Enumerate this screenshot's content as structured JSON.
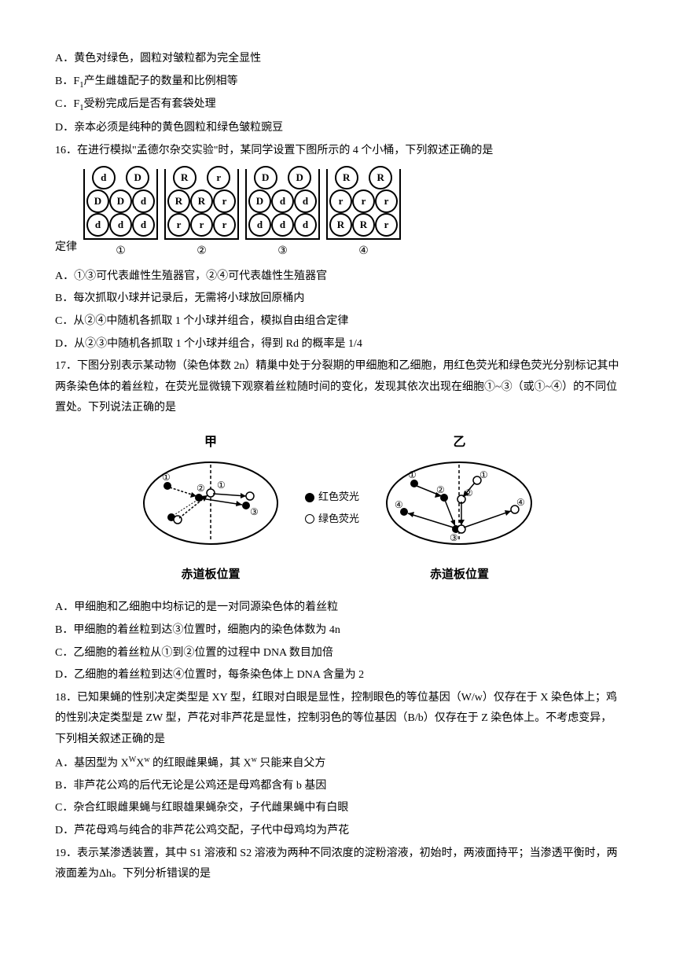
{
  "q15": {
    "optA": "A．黄色对绿色，圆粒对皱粒都为完全显性",
    "optB_pre": "B．F",
    "optB_sub": "1",
    "optB_post": "产生雌雄配子的数量和比例相等",
    "optC_pre": "C．F",
    "optC_sub": "1",
    "optC_post": "受粉完成后是否有套袋处理",
    "optD": "D．亲本必须是纯种的黄色圆粒和绿色皱粒豌豆"
  },
  "q16": {
    "stem": "16．在进行模拟\"孟德尔杂交实验\"时，某同学设置下图所示的 4 个小桶，下列叙述正确的是",
    "buckets": [
      {
        "rows": [
          [
            "d",
            "d",
            "d"
          ],
          [
            "D",
            "D",
            "d"
          ],
          [
            "d",
            "D"
          ]
        ],
        "label": "①"
      },
      {
        "rows": [
          [
            "r",
            "r",
            "r"
          ],
          [
            "R",
            "R",
            "r"
          ],
          [
            "R",
            "r"
          ]
        ],
        "label": "②"
      },
      {
        "rows": [
          [
            "d",
            "d",
            "d"
          ],
          [
            "D",
            "d",
            "d"
          ],
          [
            "D",
            "D"
          ]
        ],
        "label": "③"
      },
      {
        "rows": [
          [
            "R",
            "R",
            "r"
          ],
          [
            "r",
            "r",
            "r"
          ],
          [
            "R",
            "R"
          ]
        ],
        "label": "④"
      }
    ],
    "clip": "定律",
    "optA": "A．①③可代表雌性生殖器官，②④可代表雄性生殖器官",
    "optB": "B．每次抓取小球并记录后，无需将小球放回原桶内",
    "optC": "C．从②④中随机各抓取 1 个小球并组合，模拟自由组合定律",
    "optD": "D．从②③中随机各抓取 1 个小球并组合，得到 Rd 的概率是 1/4"
  },
  "q17": {
    "stem": "17．下图分别表示某动物（染色体数 2n）精巢中处于分裂期的甲细胞和乙细胞，用红色荧光和绿色荧光分别标记其中两条染色体的着丝粒，在荧光显微镜下观察着丝粒随时间的变化，发现其依次出现在细胞①~③（或①~④）的不同位置处。下列说法正确的是",
    "cell1_top": "甲",
    "cell2_top": "乙",
    "cell_bottom": "赤道板位置",
    "legend_red": "红色荧光",
    "legend_green": "绿色荧光",
    "optA": "A．甲细胞和乙细胞中均标记的是一对同源染色体的着丝粒",
    "optB": "B．甲细胞的着丝粒到达③位置时，细胞内的染色体数为 4n",
    "optC": "C．乙细胞的着丝粒从①到②位置的过程中 DNA 数目加倍",
    "optD": "D．乙细胞的着丝粒到达④位置时，每条染色体上 DNA 含量为 2"
  },
  "q18": {
    "stem": "18．已知果蝇的性别决定类型是 XY 型，红眼对白眼是显性，控制眼色的等位基因（W/w）仅存在于 X 染色体上；鸡的性别决定类型是 ZW 型，芦花对非芦花是显性，控制羽色的等位基因（B/b）仅存在于 Z 染色体上。不考虑变异，下列相关叙述正确的是",
    "optA_pre": "A．基因型为 X",
    "optA_sup1": "W",
    "optA_mid1": "X",
    "optA_sup2": "w",
    "optA_mid2": " 的红眼雌果蝇，其 X",
    "optA_sup3": "w",
    "optA_post": " 只能来自父方",
    "optB": "B．非芦花公鸡的后代无论是公鸡还是母鸡都含有 b 基因",
    "optC": "C．杂合红眼雌果蝇与红眼雄果蝇杂交，子代雌果蝇中有白眼",
    "optD": "D．芦花母鸡与纯合的非芦花公鸡交配，子代中母鸡均为芦花"
  },
  "q19": {
    "stem": "19．表示某渗透装置，其中 S1 溶液和 S2 溶液为两种不同浓度的淀粉溶液，初始时，两液面持平；当渗透平衡时，两液面差为Δh。下列分析错误的是"
  },
  "colors": {
    "black": "#000000",
    "white": "#ffffff"
  }
}
